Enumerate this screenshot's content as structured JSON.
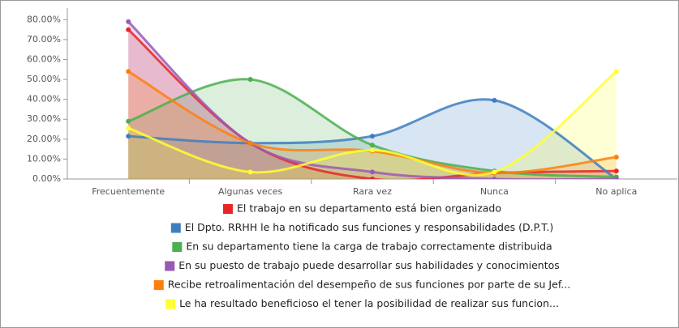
{
  "chart_data": {
    "type": "area-spline",
    "categories": [
      "Frecuentemente",
      "Algunas veces",
      "Rara vez",
      "Nunca",
      "No aplica"
    ],
    "ylim": [
      0,
      85
    ],
    "yticks": [
      {
        "value": 0,
        "label": "0.00%"
      },
      {
        "value": 10,
        "label": "10.00%"
      },
      {
        "value": 20,
        "label": "20.00%"
      },
      {
        "value": 30,
        "label": "30.00%"
      },
      {
        "value": 40,
        "label": "40.00%"
      },
      {
        "value": 50,
        "label": "50.00%"
      },
      {
        "value": 60,
        "label": "60.00%"
      },
      {
        "value": 70,
        "label": "70.00%"
      },
      {
        "value": 80,
        "label": "80.00%"
      }
    ],
    "series": [
      {
        "name": "El trabajo en su departamento está bien organizado",
        "color": "#e8262a",
        "values": [
          75,
          18,
          0,
          3,
          4
        ]
      },
      {
        "name": "El Dpto. RRHH le ha notificado sus funciones y responsabilidades (D.P.T.)",
        "color": "#3e7ebf",
        "values": [
          21.5,
          18,
          21.5,
          39.5,
          0
        ]
      },
      {
        "name": "En su departamento tiene la carga de trabajo correctamente distribuida",
        "color": "#4caf50",
        "values": [
          29,
          50,
          17,
          4,
          1
        ]
      },
      {
        "name": "En su puesto de trabajo puede desarrollar sus habilidades y conocimientos",
        "color": "#9b59b6",
        "values": [
          79,
          18,
          3.5,
          0,
          0
        ]
      },
      {
        "name": "Recibe retroalimentación del desempeño de sus funciones por parte de su Jef...",
        "color": "#ff7f0e",
        "values": [
          54,
          18,
          14,
          3,
          11
        ]
      },
      {
        "name": "Le ha resultado beneficioso el tener la posibilidad de realizar sus funcion...",
        "color": "#ffff33",
        "values": [
          25.5,
          3.5,
          14.5,
          3.5,
          54
        ]
      }
    ]
  }
}
